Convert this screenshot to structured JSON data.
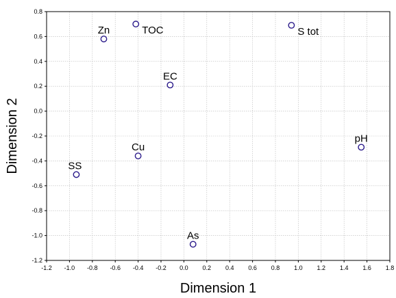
{
  "chart_data": {
    "type": "scatter",
    "title": "",
    "xlabel": "Dimension 1",
    "ylabel": "Dimension 2",
    "xlim": [
      -1.2,
      1.8
    ],
    "ylim": [
      -1.2,
      0.8
    ],
    "grid": true,
    "legend": "none",
    "marker_color": "#2a1a8a",
    "x_ticks": [
      "-1.2",
      "-1.0",
      "-0.8",
      "-0.6",
      "-0.4",
      "-0.2",
      "0.0",
      "0.2",
      "0.4",
      "0.6",
      "0.8",
      "1.0",
      "1.2",
      "1.4",
      "1.6",
      "1.8"
    ],
    "y_ticks": [
      "-1.2",
      "-1.0",
      "-0.8",
      "-0.6",
      "-0.4",
      "-0.2",
      "0.0",
      "0.2",
      "0.4",
      "0.6",
      "0.8"
    ],
    "points": [
      {
        "label": "Zn",
        "x": -0.7,
        "y": 0.58,
        "label_pos": "above"
      },
      {
        "label": "TOC",
        "x": -0.42,
        "y": 0.7,
        "label_pos": "below-right"
      },
      {
        "label": "S tot",
        "x": 0.94,
        "y": 0.69,
        "label_pos": "below-right"
      },
      {
        "label": "EC",
        "x": -0.12,
        "y": 0.21,
        "label_pos": "above"
      },
      {
        "label": "pH",
        "x": 1.55,
        "y": -0.29,
        "label_pos": "above"
      },
      {
        "label": "Cu",
        "x": -0.4,
        "y": -0.36,
        "label_pos": "above"
      },
      {
        "label": "SS",
        "x": -0.94,
        "y": -0.51,
        "label_pos": "above-left"
      },
      {
        "label": "As",
        "x": 0.08,
        "y": -1.07,
        "label_pos": "above"
      }
    ]
  }
}
